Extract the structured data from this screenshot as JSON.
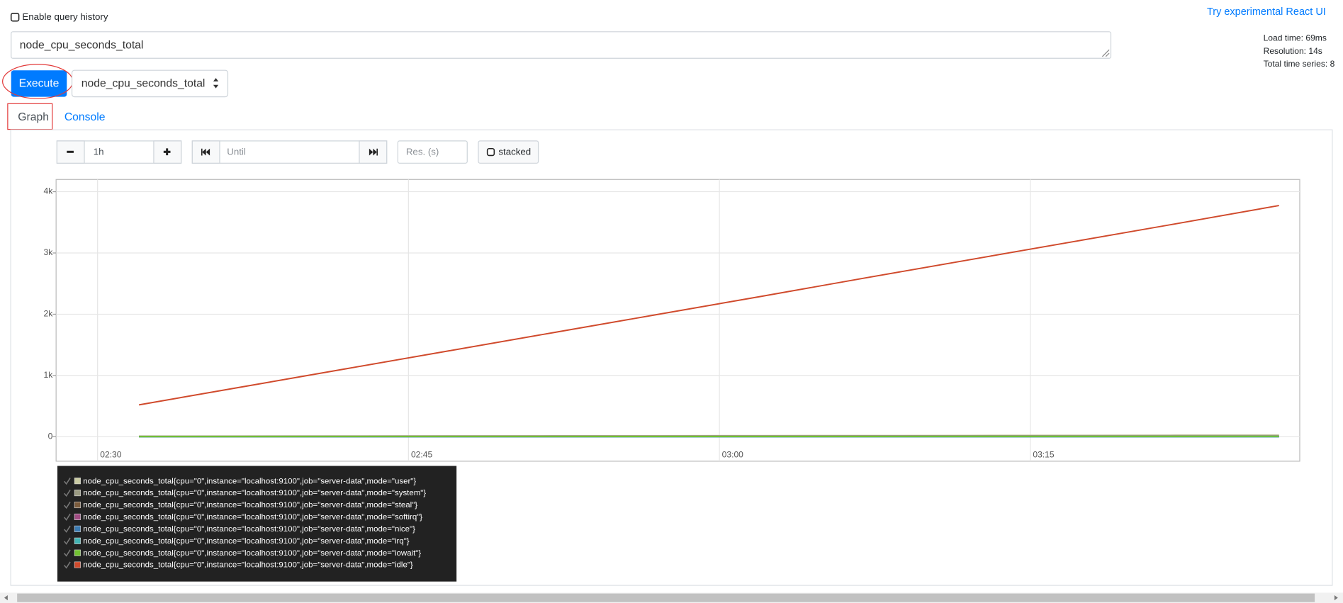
{
  "header": {
    "query_history_label": "Enable query history",
    "react_ui_link": "Try experimental React UI"
  },
  "query": {
    "expression": "node_cpu_seconds_total",
    "execute_button": "Execute",
    "metric_select": "node_cpu_seconds_total"
  },
  "stats": [
    "Load time: 69ms",
    "Resolution: 14s",
    "Total time series: 8"
  ],
  "tabs": [
    "Graph",
    "Console"
  ],
  "controls": {
    "range": "1h",
    "until_placeholder": "Until",
    "resolution_placeholder": "Res. (s)",
    "stacked_label": "stacked"
  },
  "chart_data": {
    "type": "line",
    "x": [
      "02:32",
      "02:37",
      "02:42",
      "02:47",
      "02:52",
      "02:57",
      "03:02",
      "03:07",
      "03:12",
      "03:17",
      "03:22",
      "03:27"
    ],
    "xlim": [
      "02:28",
      "03:28"
    ],
    "xticks": [
      "02:30",
      "02:45",
      "03:00",
      "03:15"
    ],
    "ylim": [
      -400,
      4200
    ],
    "yticks": [
      0,
      {
        "value": 1000,
        "label": "1k"
      },
      {
        "value": 2000,
        "label": "2k"
      },
      {
        "value": 3000,
        "label": "3k"
      },
      {
        "value": 4000,
        "label": "4k"
      }
    ],
    "grid": true,
    "series": [
      {
        "name": "node_cpu_seconds_total{cpu=\"0\",instance=\"localhost:9100\",job=\"server-data\",mode=\"user\"}",
        "color": "#c9cba3",
        "values": [
          10,
          11,
          13,
          14,
          16,
          17,
          19,
          20,
          22,
          23,
          25,
          26
        ]
      },
      {
        "name": "node_cpu_seconds_total{cpu=\"0\",instance=\"localhost:9100\",job=\"server-data\",mode=\"system\"}",
        "color": "#9a9a82",
        "values": [
          8,
          9,
          10,
          11,
          12,
          13,
          14,
          15,
          16,
          17,
          18,
          19
        ]
      },
      {
        "name": "node_cpu_seconds_total{cpu=\"0\",instance=\"localhost:9100\",job=\"server-data\",mode=\"steal\"}",
        "color": "#7b5b3c",
        "values": [
          0,
          0,
          0,
          0,
          0,
          0,
          0,
          0,
          0,
          0,
          0,
          0
        ]
      },
      {
        "name": "node_cpu_seconds_total{cpu=\"0\",instance=\"localhost:9100\",job=\"server-data\",mode=\"softirq\"}",
        "color": "#a04b82",
        "values": [
          1,
          1,
          1,
          1,
          1,
          2,
          2,
          2,
          2,
          2,
          2,
          2
        ]
      },
      {
        "name": "node_cpu_seconds_total{cpu=\"0\",instance=\"localhost:9100\",job=\"server-data\",mode=\"nice\"}",
        "color": "#3b7bb2",
        "values": [
          0,
          0,
          0,
          0,
          0,
          0,
          0,
          0,
          0,
          0,
          0,
          0
        ]
      },
      {
        "name": "node_cpu_seconds_total{cpu=\"0\",instance=\"localhost:9100\",job=\"server-data\",mode=\"irq\"}",
        "color": "#43b4b4",
        "values": [
          0,
          0,
          0,
          0,
          0,
          0,
          0,
          0,
          0,
          0,
          0,
          0
        ]
      },
      {
        "name": "node_cpu_seconds_total{cpu=\"0\",instance=\"localhost:9100\",job=\"server-data\",mode=\"iowait\"}",
        "color": "#72c232",
        "values": [
          2,
          2,
          3,
          3,
          3,
          4,
          4,
          4,
          5,
          5,
          5,
          6
        ]
      },
      {
        "name": "node_cpu_seconds_total{cpu=\"0\",instance=\"localhost:9100\",job=\"server-data\",mode=\"idle\"}",
        "color": "#d04a2c",
        "values": [
          520,
          815,
          1110,
          1405,
          1700,
          1995,
          2290,
          2590,
          2885,
          3180,
          3475,
          3775
        ]
      }
    ]
  }
}
